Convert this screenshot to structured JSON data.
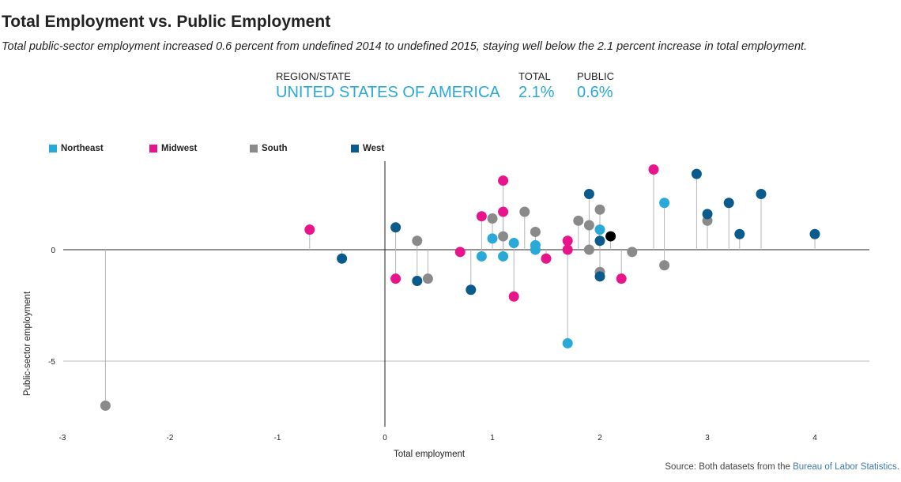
{
  "header": {
    "title": "Total Employment vs. Public Employment",
    "subtitle": "Total public-sector employment increased 0.6 percent from undefined 2014 to undefined 2015, staying well below the 2.1 percent increase in total employment."
  },
  "summary": {
    "region_header": "REGION/STATE",
    "total_header": "TOTAL",
    "public_header": "PUBLIC",
    "region_value": "UNITED STATES OF AMERICA",
    "total_value": "2.1%",
    "public_value": "0.6%",
    "accent_color": "#29a9d7"
  },
  "legend": [
    {
      "name": "Northeast",
      "color": "#29a9d7"
    },
    {
      "name": "Midwest",
      "color": "#e8148c"
    },
    {
      "name": "South",
      "color": "#8a8a8a"
    },
    {
      "name": "West",
      "color": "#0b5a8c"
    }
  ],
  "source": {
    "prefix": "Source: Both datasets from the ",
    "link_text": "Bureau of Labor Statistics",
    "suffix": "."
  },
  "chart_data": {
    "type": "scatter",
    "xlabel": "Total employment",
    "ylabel": "Public-sector employment",
    "xlim": [
      -3,
      4.5
    ],
    "ylim": [
      -8,
      4
    ],
    "xticks": [
      "-3",
      "-2",
      "-1",
      "0",
      "1",
      "2",
      "3",
      "4"
    ],
    "yticks": [
      "0",
      "-5"
    ],
    "highlight": {
      "name": "United States of America",
      "x": 2.1,
      "y": 0.6,
      "color": "#000000"
    },
    "series": [
      {
        "name": "Northeast",
        "color": "#29a9d7",
        "points": [
          {
            "x": 0.9,
            "y": -0.3
          },
          {
            "x": 1.0,
            "y": 0.5
          },
          {
            "x": 1.1,
            "y": -0.3
          },
          {
            "x": 1.2,
            "y": 0.3
          },
          {
            "x": 1.4,
            "y": 0.2
          },
          {
            "x": 1.4,
            "y": 0.0
          },
          {
            "x": 1.7,
            "y": -4.2
          },
          {
            "x": 2.0,
            "y": 0.9
          },
          {
            "x": 2.6,
            "y": 2.1
          }
        ]
      },
      {
        "name": "Midwest",
        "color": "#e8148c",
        "points": [
          {
            "x": -0.7,
            "y": 0.9
          },
          {
            "x": 0.1,
            "y": -1.3
          },
          {
            "x": 0.7,
            "y": -0.1
          },
          {
            "x": 0.9,
            "y": 1.5
          },
          {
            "x": 1.1,
            "y": 3.1
          },
          {
            "x": 1.1,
            "y": 1.7
          },
          {
            "x": 1.2,
            "y": -2.1
          },
          {
            "x": 1.5,
            "y": -0.4
          },
          {
            "x": 1.7,
            "y": 0.4
          },
          {
            "x": 1.7,
            "y": 0.0
          },
          {
            "x": 2.2,
            "y": -1.3
          },
          {
            "x": 2.5,
            "y": 3.6
          }
        ]
      },
      {
        "name": "South",
        "color": "#8a8a8a",
        "points": [
          {
            "x": -2.6,
            "y": -7.0
          },
          {
            "x": 0.3,
            "y": 0.4
          },
          {
            "x": 0.4,
            "y": -1.3
          },
          {
            "x": 1.0,
            "y": 1.4
          },
          {
            "x": 1.1,
            "y": 0.6
          },
          {
            "x": 1.3,
            "y": 1.7
          },
          {
            "x": 1.4,
            "y": 0.8
          },
          {
            "x": 1.8,
            "y": 1.3
          },
          {
            "x": 1.9,
            "y": 1.1
          },
          {
            "x": 1.9,
            "y": 0.0
          },
          {
            "x": 2.0,
            "y": 1.8
          },
          {
            "x": 2.0,
            "y": -1.0
          },
          {
            "x": 2.3,
            "y": -0.1
          },
          {
            "x": 2.6,
            "y": -0.7
          },
          {
            "x": 3.0,
            "y": 1.3
          }
        ]
      },
      {
        "name": "West",
        "color": "#0b5a8c",
        "points": [
          {
            "x": -0.4,
            "y": -0.4
          },
          {
            "x": 0.1,
            "y": 1.0
          },
          {
            "x": 0.3,
            "y": -1.4
          },
          {
            "x": 0.8,
            "y": -1.8
          },
          {
            "x": 1.9,
            "y": 2.5
          },
          {
            "x": 2.0,
            "y": 0.4
          },
          {
            "x": 2.0,
            "y": -1.2
          },
          {
            "x": 2.9,
            "y": 3.4
          },
          {
            "x": 3.0,
            "y": 1.6
          },
          {
            "x": 3.2,
            "y": 2.1
          },
          {
            "x": 3.3,
            "y": 0.7
          },
          {
            "x": 3.5,
            "y": 2.5
          },
          {
            "x": 4.0,
            "y": 0.7
          }
        ]
      }
    ]
  }
}
